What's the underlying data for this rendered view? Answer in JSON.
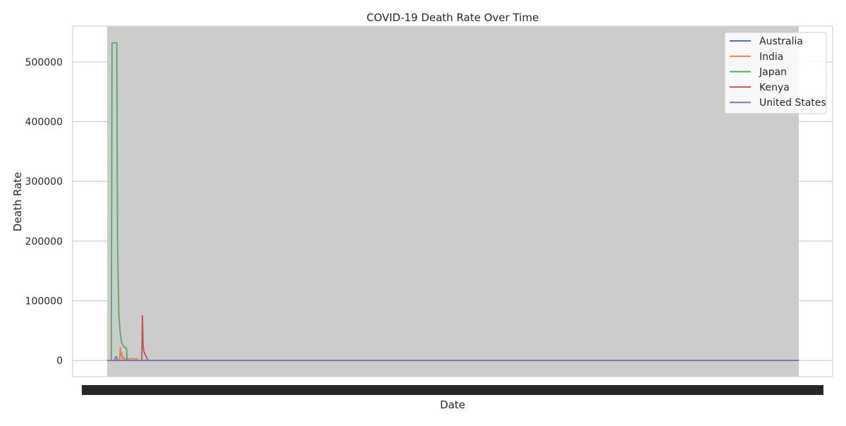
{
  "chart_data": {
    "type": "line",
    "title": "COVID-19 Death Rate Over Time",
    "xlabel": "Date",
    "ylabel": "Death Rate",
    "ylim": [
      -27000,
      560000
    ],
    "yticks": [
      0,
      100000,
      200000,
      300000,
      400000,
      500000
    ],
    "ytick_labels": [
      "0",
      "100000",
      "200000",
      "300000",
      "400000",
      "500000"
    ],
    "x_index_range": [
      0,
      1000
    ],
    "x_tick_labels_overplotted": true,
    "grid": true,
    "legend_position": "top-right",
    "background_band_color": "#cccccc",
    "series": [
      {
        "name": "Australia",
        "color": "#4c72b0",
        "points": [
          [
            0,
            0
          ],
          [
            1000,
            0
          ]
        ]
      },
      {
        "name": "India",
        "color": "#dd8452",
        "points": [
          [
            0,
            0
          ],
          [
            13,
            0
          ],
          [
            14,
            2000
          ],
          [
            15,
            0
          ],
          [
            18,
            0
          ],
          [
            19,
            22000
          ],
          [
            20,
            8000
          ],
          [
            21,
            13000
          ],
          [
            22,
            3000
          ],
          [
            24,
            6000
          ],
          [
            25,
            2000
          ],
          [
            27,
            3500
          ],
          [
            30,
            2000
          ],
          [
            35,
            3500
          ],
          [
            40,
            2500
          ],
          [
            43,
            3500
          ],
          [
            44,
            0
          ],
          [
            1000,
            0
          ]
        ]
      },
      {
        "name": "Japan",
        "color": "#55a868",
        "points": [
          [
            0,
            0
          ],
          [
            6,
            0
          ],
          [
            7,
            532000
          ],
          [
            14,
            532000
          ],
          [
            15,
            200000
          ],
          [
            16,
            130000
          ],
          [
            17,
            75000
          ],
          [
            19,
            45000
          ],
          [
            21,
            30000
          ],
          [
            23,
            25000
          ],
          [
            25,
            22000
          ],
          [
            28,
            21000
          ],
          [
            29,
            0
          ],
          [
            1000,
            0
          ]
        ]
      },
      {
        "name": "Kenya",
        "color": "#c44e52",
        "points": [
          [
            0,
            0
          ],
          [
            50,
            0
          ],
          [
            51,
            75000
          ],
          [
            52,
            25000
          ],
          [
            53,
            15000
          ],
          [
            55,
            10000
          ],
          [
            57,
            5000
          ],
          [
            59,
            0
          ],
          [
            1000,
            0
          ]
        ]
      },
      {
        "name": "United States",
        "color": "#8172b3",
        "points": [
          [
            0,
            0
          ],
          [
            11,
            0
          ],
          [
            12,
            6000
          ],
          [
            14,
            6000
          ],
          [
            15,
            0
          ],
          [
            1000,
            0
          ]
        ]
      }
    ]
  }
}
